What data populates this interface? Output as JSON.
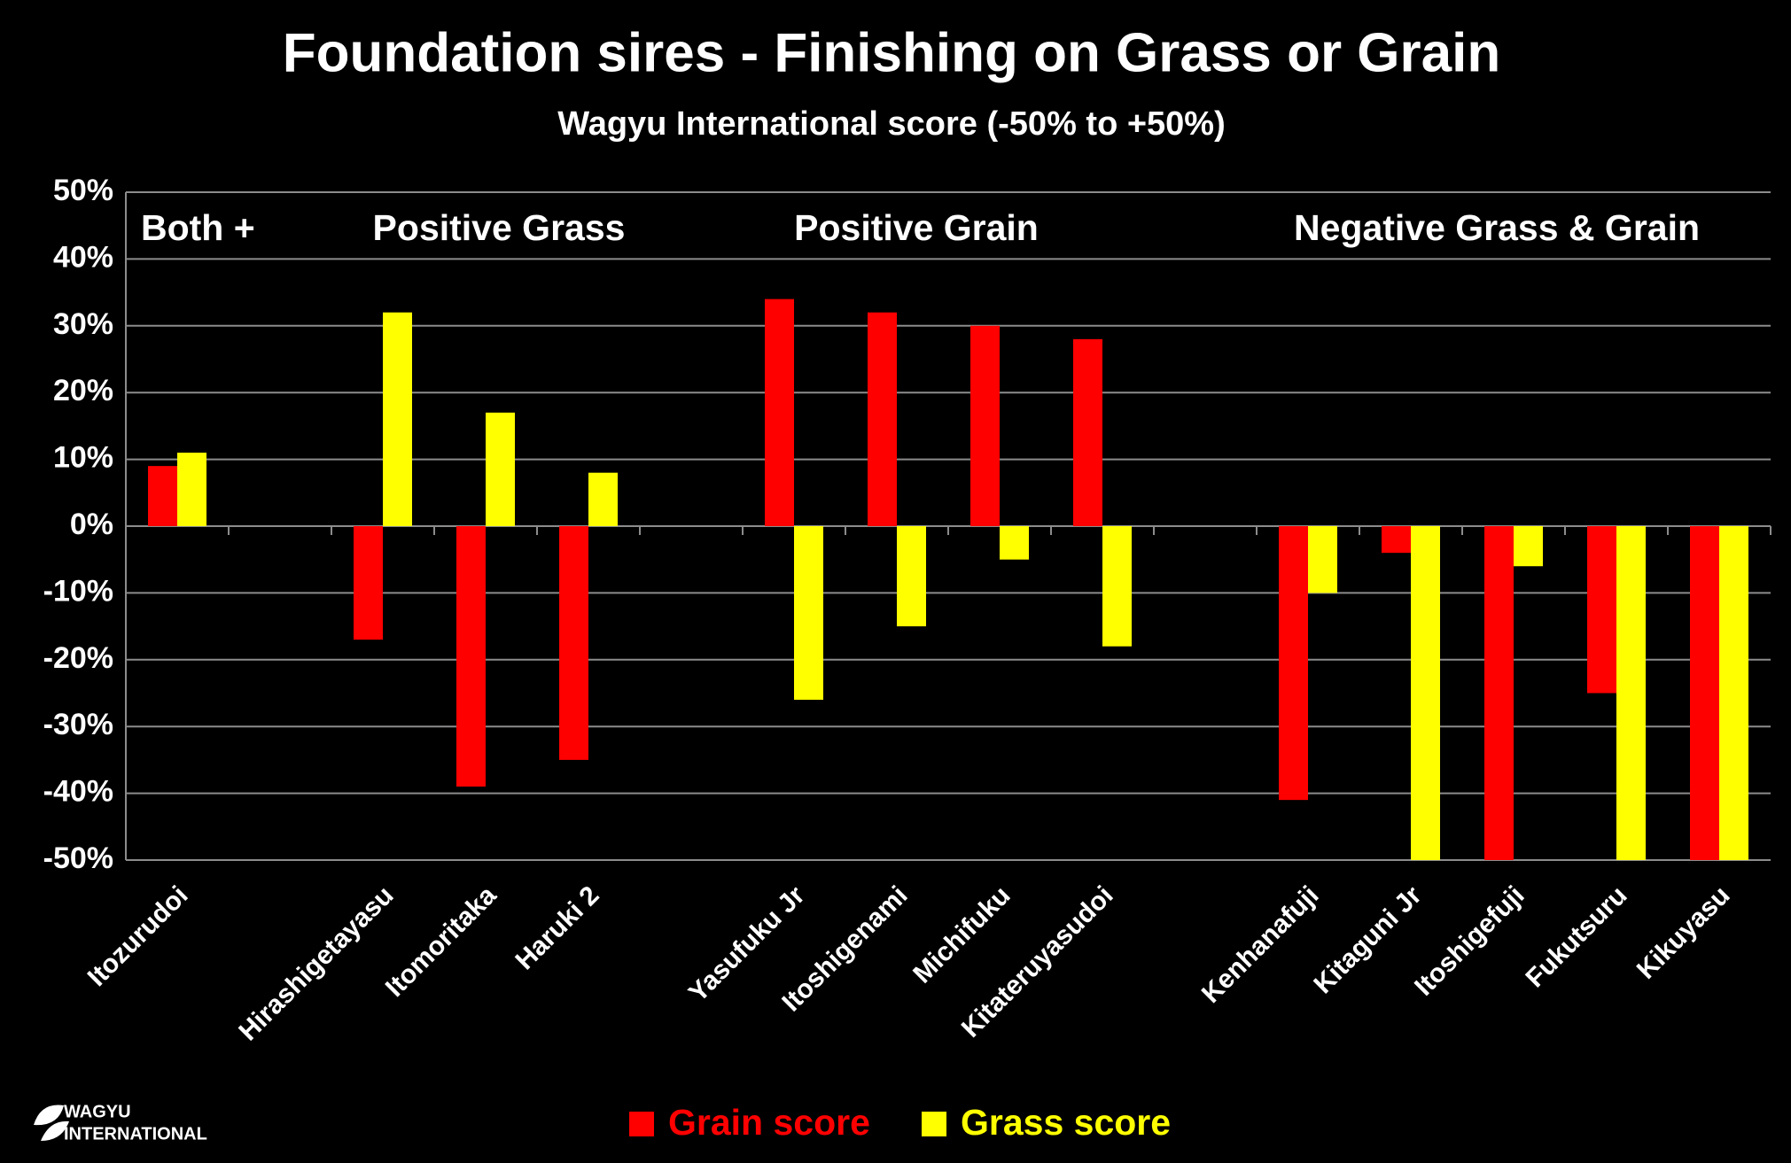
{
  "chart_data": {
    "type": "bar",
    "title": "Foundation sires - Finishing on Grass or Grain",
    "subtitle": "Wagyu International score (-50% to +50%)",
    "categories": [
      "Itozurudoi",
      null,
      "Hirashigetayasu",
      "Itomoritaka",
      "Haruki 2",
      null,
      "Yasufuku Jr",
      "Itoshigenami",
      "Michifuku",
      "Kitateruyasudoi",
      null,
      "Kenhanafuji",
      "Kitaguni Jr",
      "Itoshigefuji",
      "Fukutsuru",
      "Kikuyasu"
    ],
    "series": [
      {
        "name": "Grain score",
        "color": "#ff0000",
        "values": [
          9,
          null,
          -17,
          -39,
          -35,
          null,
          34,
          32,
          30,
          28,
          null,
          -41,
          -4,
          -50,
          -25,
          -50
        ]
      },
      {
        "name": "Grass score",
        "color": "#ffff00",
        "values": [
          11,
          null,
          32,
          17,
          8,
          null,
          -26,
          -15,
          -5,
          -18,
          null,
          -10,
          -50,
          -6,
          -50,
          -50
        ]
      }
    ],
    "annotations": [
      "Both +",
      "Positive Grass",
      "Positive Grain",
      "Negative Grass & Grain"
    ],
    "ylim": [
      -50,
      50
    ],
    "yticks": [
      {
        "value": -50,
        "label": "-50%"
      },
      {
        "value": -40,
        "label": "-40%"
      },
      {
        "value": -30,
        "label": "-30%"
      },
      {
        "value": -20,
        "label": "-20%"
      },
      {
        "value": -10,
        "label": "-10%"
      },
      {
        "value": 0,
        "label": "0%"
      },
      {
        "value": 10,
        "label": "10%"
      },
      {
        "value": 20,
        "label": "20%"
      },
      {
        "value": 30,
        "label": "30%"
      },
      {
        "value": 40,
        "label": "40%"
      },
      {
        "value": 50,
        "label": "50%"
      }
    ],
    "grid": true
  },
  "logo": [
    "WAGYU",
    "INTERNATIONAL"
  ]
}
